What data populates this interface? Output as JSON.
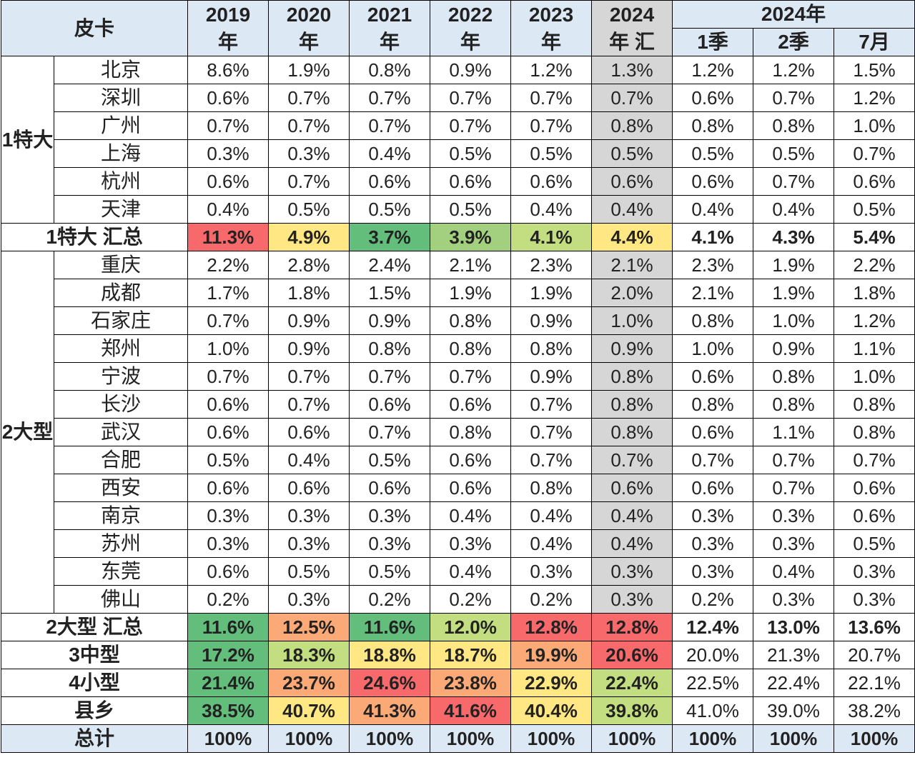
{
  "header": {
    "corner": "皮卡",
    "years": [
      {
        "top": "2019",
        "bottom": "年"
      },
      {
        "top": "2020",
        "bottom": "年"
      },
      {
        "top": "2021",
        "bottom": "年"
      },
      {
        "top": "2022",
        "bottom": "年"
      },
      {
        "top": "2023",
        "bottom": "年"
      },
      {
        "top": "2024",
        "bottom": "年 汇"
      }
    ],
    "recent_group": "2024年",
    "recent_cols": [
      "1季",
      "2季",
      "7月"
    ]
  },
  "colors": {
    "red": "#f8696b",
    "orange": "#fba977",
    "yellow": "#ffe784",
    "lightgreen": "#c3dd81",
    "midgreen": "#a2d07f",
    "green": "#63be7b",
    "header_bg": "#dde8f5",
    "highlight_col": "#d6d6d6"
  },
  "groups": [
    {
      "label": "1特大",
      "rows": [
        {
          "city": "北京",
          "values": [
            "8.6%",
            "1.9%",
            "0.8%",
            "0.9%",
            "1.2%",
            "1.3%",
            "1.2%",
            "1.2%",
            "1.5%"
          ]
        },
        {
          "city": "深圳",
          "values": [
            "0.6%",
            "0.7%",
            "0.7%",
            "0.7%",
            "0.7%",
            "0.7%",
            "0.6%",
            "0.7%",
            "1.2%"
          ]
        },
        {
          "city": "广州",
          "values": [
            "0.7%",
            "0.7%",
            "0.7%",
            "0.7%",
            "0.7%",
            "0.8%",
            "0.8%",
            "0.8%",
            "1.0%"
          ]
        },
        {
          "city": "上海",
          "values": [
            "0.3%",
            "0.3%",
            "0.4%",
            "0.5%",
            "0.5%",
            "0.5%",
            "0.5%",
            "0.5%",
            "0.7%"
          ]
        },
        {
          "city": "杭州",
          "values": [
            "0.6%",
            "0.7%",
            "0.6%",
            "0.6%",
            "0.6%",
            "0.6%",
            "0.6%",
            "0.7%",
            "0.6%"
          ]
        },
        {
          "city": "天津",
          "values": [
            "0.4%",
            "0.5%",
            "0.5%",
            "0.5%",
            "0.4%",
            "0.4%",
            "0.4%",
            "0.4%",
            "0.5%"
          ]
        }
      ],
      "summary": {
        "label": "1特大 汇总",
        "values": [
          "11.3%",
          "4.9%",
          "3.7%",
          "3.9%",
          "4.1%",
          "4.4%",
          "4.1%",
          "4.3%",
          "5.4%"
        ],
        "colors": [
          "red",
          "yellow",
          "green",
          "midgreen",
          "lightgreen",
          "yellow",
          null,
          null,
          null
        ],
        "bold_recent": true
      }
    },
    {
      "label": "2大型",
      "rows": [
        {
          "city": "重庆",
          "values": [
            "2.2%",
            "2.8%",
            "2.4%",
            "2.1%",
            "2.3%",
            "2.1%",
            "2.3%",
            "1.9%",
            "2.2%"
          ]
        },
        {
          "city": "成都",
          "values": [
            "1.7%",
            "1.8%",
            "1.5%",
            "1.9%",
            "1.9%",
            "2.0%",
            "2.1%",
            "1.9%",
            "1.8%"
          ]
        },
        {
          "city": "石家庄",
          "values": [
            "0.7%",
            "0.9%",
            "0.9%",
            "0.8%",
            "0.9%",
            "1.0%",
            "0.8%",
            "1.0%",
            "1.2%"
          ]
        },
        {
          "city": "郑州",
          "values": [
            "1.0%",
            "0.9%",
            "0.8%",
            "0.8%",
            "0.8%",
            "0.9%",
            "1.0%",
            "0.9%",
            "1.1%"
          ]
        },
        {
          "city": "宁波",
          "values": [
            "0.7%",
            "0.7%",
            "0.7%",
            "0.7%",
            "0.9%",
            "0.8%",
            "0.6%",
            "0.8%",
            "1.0%"
          ]
        },
        {
          "city": "长沙",
          "values": [
            "0.6%",
            "0.7%",
            "0.6%",
            "0.6%",
            "0.7%",
            "0.8%",
            "0.8%",
            "0.8%",
            "0.8%"
          ]
        },
        {
          "city": "武汉",
          "values": [
            "0.6%",
            "0.6%",
            "0.7%",
            "0.8%",
            "0.7%",
            "0.8%",
            "0.6%",
            "1.1%",
            "0.8%"
          ]
        },
        {
          "city": "合肥",
          "values": [
            "0.5%",
            "0.4%",
            "0.5%",
            "0.6%",
            "0.7%",
            "0.7%",
            "0.7%",
            "0.7%",
            "0.7%"
          ]
        },
        {
          "city": "西安",
          "values": [
            "0.6%",
            "0.6%",
            "0.6%",
            "0.6%",
            "0.8%",
            "0.6%",
            "0.6%",
            "0.7%",
            "0.6%"
          ]
        },
        {
          "city": "南京",
          "values": [
            "0.3%",
            "0.3%",
            "0.3%",
            "0.4%",
            "0.4%",
            "0.4%",
            "0.3%",
            "0.3%",
            "0.6%"
          ]
        },
        {
          "city": "苏州",
          "values": [
            "0.3%",
            "0.3%",
            "0.3%",
            "0.3%",
            "0.4%",
            "0.4%",
            "0.3%",
            "0.3%",
            "0.5%"
          ]
        },
        {
          "city": "东莞",
          "values": [
            "0.6%",
            "0.5%",
            "0.5%",
            "0.4%",
            "0.3%",
            "0.3%",
            "0.3%",
            "0.4%",
            "0.3%"
          ]
        },
        {
          "city": "佛山",
          "values": [
            "0.2%",
            "0.3%",
            "0.2%",
            "0.2%",
            "0.2%",
            "0.3%",
            "0.2%",
            "0.3%",
            "0.3%"
          ]
        }
      ],
      "summary": {
        "label": "2大型 汇总",
        "values": [
          "11.6%",
          "12.5%",
          "11.6%",
          "12.0%",
          "12.8%",
          "12.8%",
          "12.4%",
          "13.0%",
          "13.6%"
        ],
        "colors": [
          "green",
          "orange",
          "green",
          "lightgreen",
          "red",
          "red",
          null,
          null,
          null
        ],
        "bold_recent": true
      }
    }
  ],
  "tail_rows": [
    {
      "label": "3中型",
      "values": [
        "17.2%",
        "18.3%",
        "18.8%",
        "18.7%",
        "19.9%",
        "20.6%",
        "20.0%",
        "21.3%",
        "20.7%"
      ],
      "colors": [
        "green",
        "lightgreen",
        "yellow",
        "yellow",
        "orange",
        "red",
        null,
        null,
        null
      ],
      "bold_recent": false
    },
    {
      "label": "4小型",
      "values": [
        "21.4%",
        "23.7%",
        "24.6%",
        "23.8%",
        "22.9%",
        "22.4%",
        "22.5%",
        "22.4%",
        "22.1%"
      ],
      "colors": [
        "green",
        "orange",
        "red",
        "orange",
        "yellow",
        "lightgreen",
        null,
        null,
        null
      ],
      "bold_recent": false
    },
    {
      "label": "县乡",
      "values": [
        "38.5%",
        "40.7%",
        "41.3%",
        "41.6%",
        "40.4%",
        "39.8%",
        "41.0%",
        "39.0%",
        "38.2%"
      ],
      "colors": [
        "green",
        "yellow",
        "orange",
        "red",
        "yellow",
        "lightgreen",
        null,
        null,
        null
      ],
      "bold_recent": false
    },
    {
      "label": "总计",
      "values": [
        "100%",
        "100%",
        "100%",
        "100%",
        "100%",
        "100%",
        "100%",
        "100%",
        "100%"
      ],
      "colors": [
        null,
        null,
        null,
        null,
        null,
        null,
        null,
        null,
        null
      ],
      "bold_recent": true,
      "header_style": true
    }
  ]
}
